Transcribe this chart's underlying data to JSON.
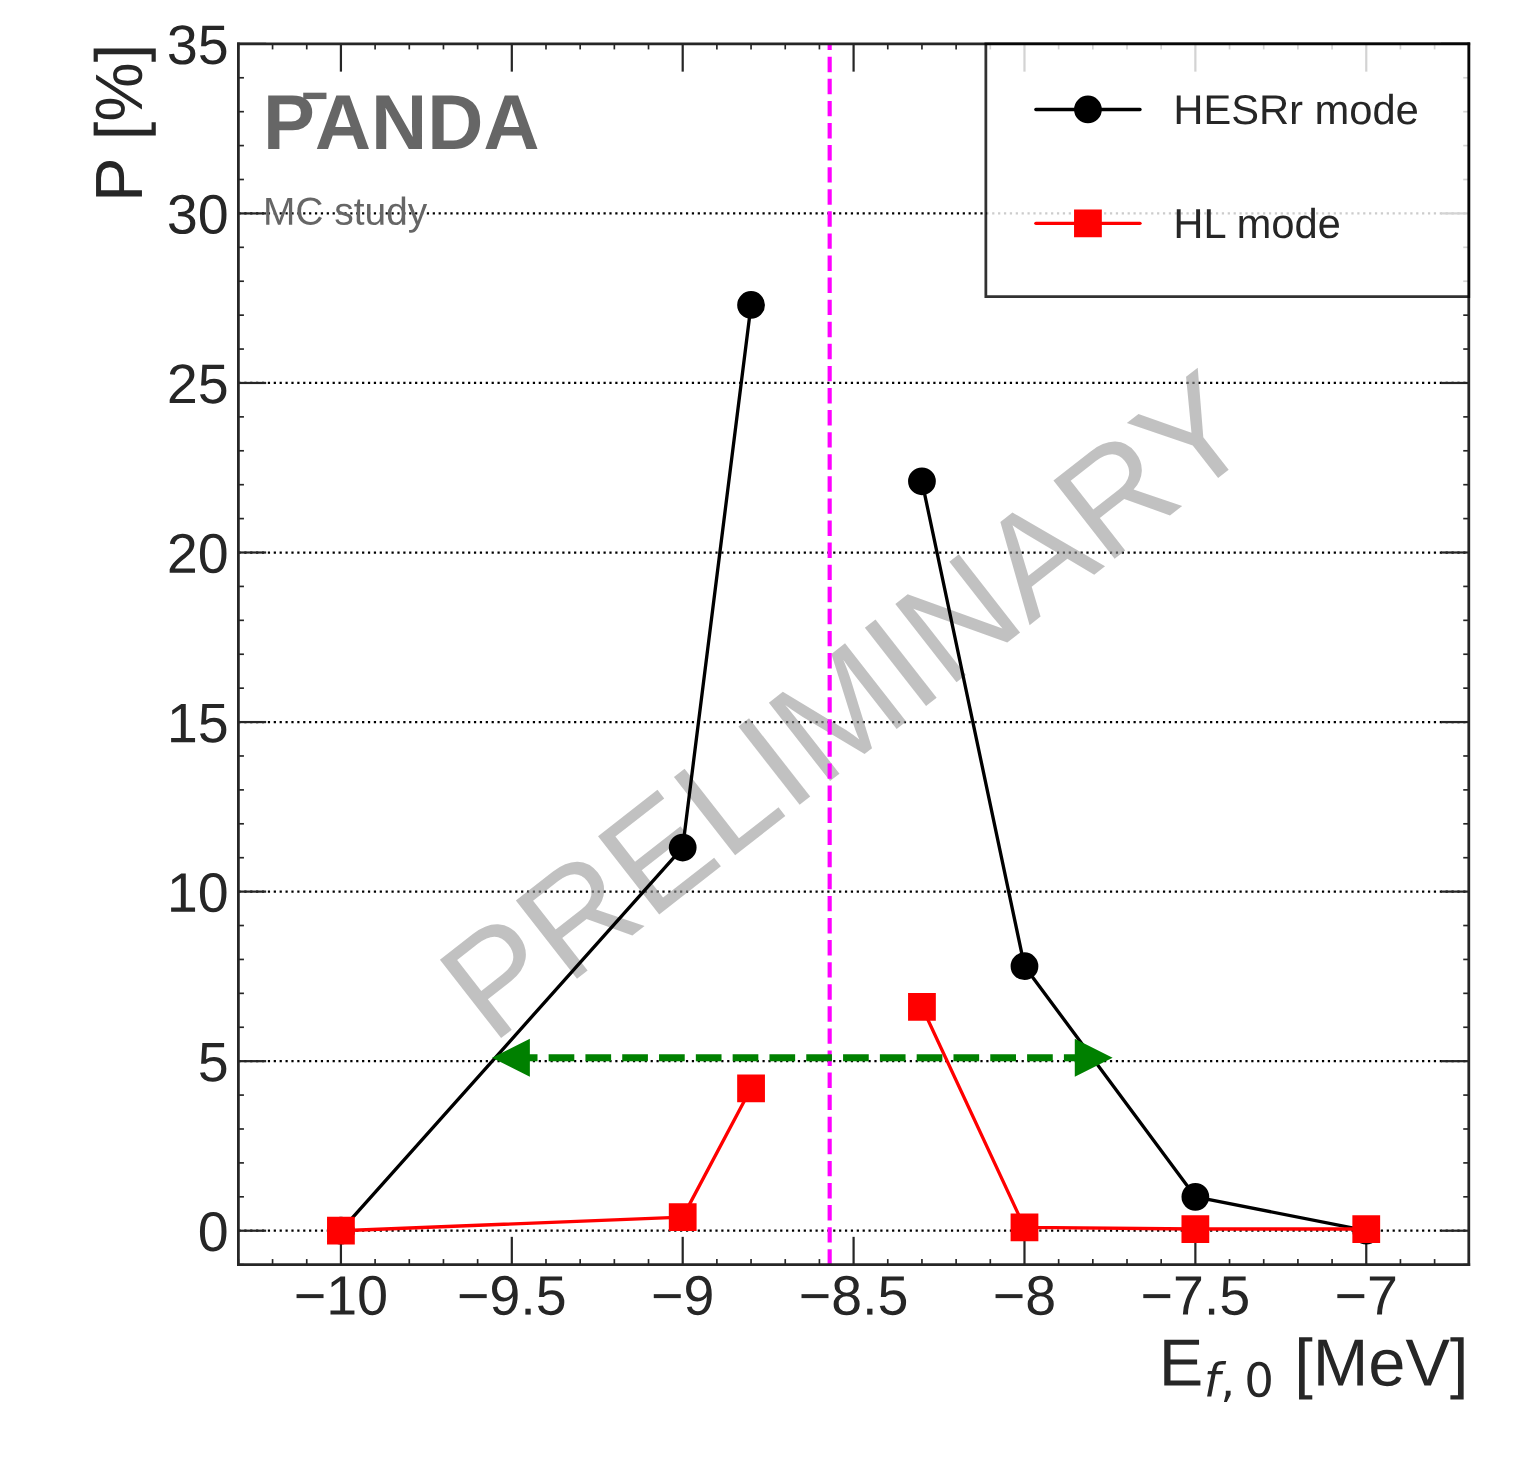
{
  "chart_data": {
    "type": "line",
    "xlabel": "E$_{f,0}$ [MeV]",
    "ylabel": "P [%]",
    "xlim": [
      -10.3,
      -6.7
    ],
    "ylim": [
      -1,
      35
    ],
    "xticks": [
      {
        "value": -10,
        "label": "−10"
      },
      {
        "value": -9.5,
        "label": "−9.5"
      },
      {
        "value": -9,
        "label": "−9"
      },
      {
        "value": -8.5,
        "label": "−8.5"
      },
      {
        "value": -8,
        "label": "−8"
      },
      {
        "value": -7.5,
        "label": "−7.5"
      },
      {
        "value": -7,
        "label": "−7"
      }
    ],
    "yticks": [
      0,
      5,
      10,
      15,
      20,
      25,
      30,
      35
    ],
    "grid": "y",
    "legend": "top right",
    "series": [
      {
        "name": "HESRr mode",
        "color": "#000000",
        "marker": "circle",
        "x": [
          -10,
          -9,
          -8.8,
          -8.55,
          -8.3,
          -8,
          -7.5,
          -7
        ],
        "values": [
          0,
          11.3,
          27.3,
          null,
          22.1,
          7.8,
          1.0,
          0
        ]
      },
      {
        "name": "HL mode",
        "color": "#ff0000",
        "marker": "square",
        "x": [
          -10,
          -9,
          -8.8,
          -8.55,
          -8.3,
          -8,
          -7.5,
          -7
        ],
        "values": [
          0,
          0.4,
          4.2,
          null,
          6.6,
          0.1,
          0.05,
          0.05
        ]
      },
      {
        "type": "line",
        "color": "#008000",
        "marker": "triangle",
        "line_style": "dashed",
        "x": [
          -9.5,
          -7.8
        ],
        "values": [
          5.1,
          5.1
        ]
      }
    ],
    "ref_lines": [
      {
        "axis": "x",
        "value": -8.57,
        "color": "#ff00ff",
        "line_style": "dashed"
      }
    ],
    "annotations": [
      "P̄ANDA",
      "MC study",
      "PRELIMINARY"
    ]
  }
}
